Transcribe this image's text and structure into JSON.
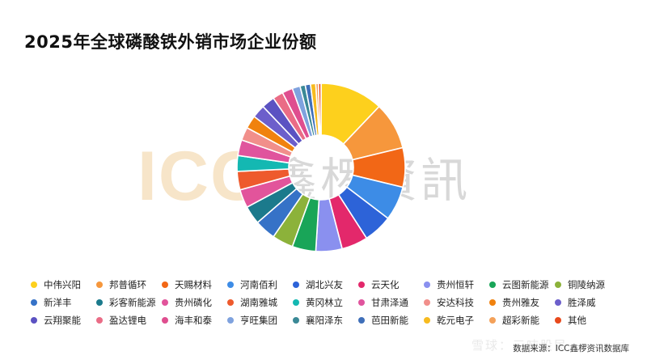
{
  "page": {
    "title": "2025年全球磷酸铁外销市场企业份额",
    "source": "数据来源：ICC鑫椤资讯数据库",
    "watermark_icc": "ICC",
    "watermark_cn": "鑫椤資訊",
    "platform_watermark": "雪球：三吨股民"
  },
  "chart_data": {
    "type": "pie",
    "donut": true,
    "title": "2025年全球磷酸铁外销市场企业份额",
    "legend_position": "bottom",
    "categories": [
      "中伟兴阳",
      "邦普循环",
      "天赐材料",
      "河南佰利",
      "湖北兴友",
      "云天化",
      "贵州恒轩",
      "云图新能源",
      "铜陵纳源",
      "新洋丰",
      "彩客新能源",
      "贵州磷化",
      "湖南雅城",
      "黄冈林立",
      "甘肃泽通",
      "安达科技",
      "贵州雅友",
      "胜泽威",
      "云翔聚能",
      "盈达锂电",
      "海丰和泰",
      "亨旺集团",
      "襄阳泽东",
      "芭田新能",
      "乾元电子",
      "超彩新能",
      "其他"
    ],
    "values": [
      12.0,
      9.0,
      7.5,
      6.5,
      5.5,
      5.0,
      5.0,
      4.5,
      4.0,
      4.0,
      3.5,
      3.5,
      3.5,
      3.0,
      3.0,
      2.5,
      2.5,
      2.5,
      2.5,
      2.0,
      2.0,
      1.5,
      1.0,
      1.0,
      1.0,
      0.5,
      0.5
    ],
    "colors": [
      "#FDD01D",
      "#F6973C",
      "#F26716",
      "#3D8CE6",
      "#2D63D8",
      "#E3286B",
      "#8A90EF",
      "#19A558",
      "#8CB23A",
      "#3672C7",
      "#1B7A8C",
      "#E2549B",
      "#EE5A2D",
      "#14B8B2",
      "#E0549D",
      "#F18F8B",
      "#F0820E",
      "#6C5FCB",
      "#5B52C2",
      "#EA6C86",
      "#DF4E8F",
      "#7FA2DE",
      "#3A8996",
      "#3F6FB9",
      "#F7BB1F",
      "#F4A159",
      "#E8491C"
    ]
  }
}
